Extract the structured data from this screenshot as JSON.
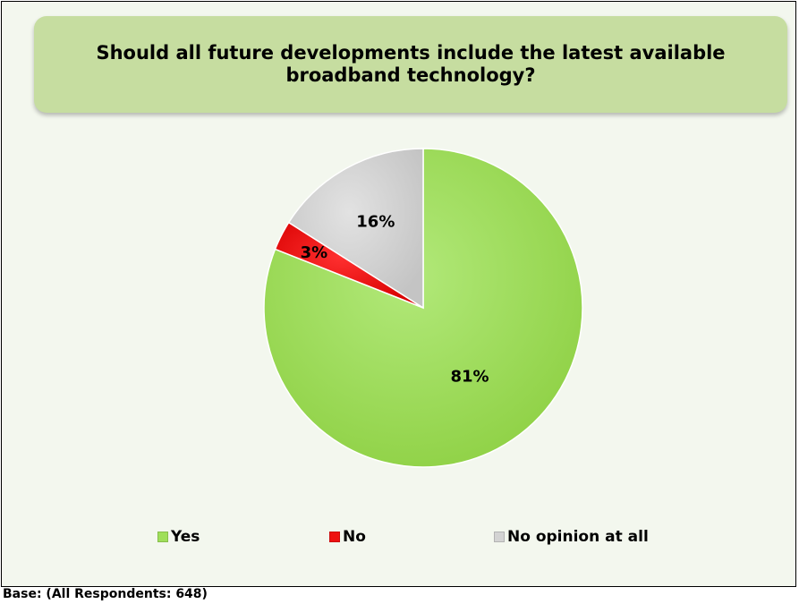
{
  "chart_data": {
    "type": "pie",
    "title": "Should all future developments include the latest available broadband technology?",
    "categories": [
      "Yes",
      "No",
      "No opinion at all"
    ],
    "values": [
      81,
      3,
      16
    ],
    "labels": [
      "81%",
      "3%",
      "16%"
    ],
    "colors": [
      "#9fdf5a",
      "#ee1111",
      "#d3d3d3"
    ],
    "legend_position": "bottom"
  },
  "footer": {
    "base_note": "Base: (All Respondents: 648)"
  }
}
